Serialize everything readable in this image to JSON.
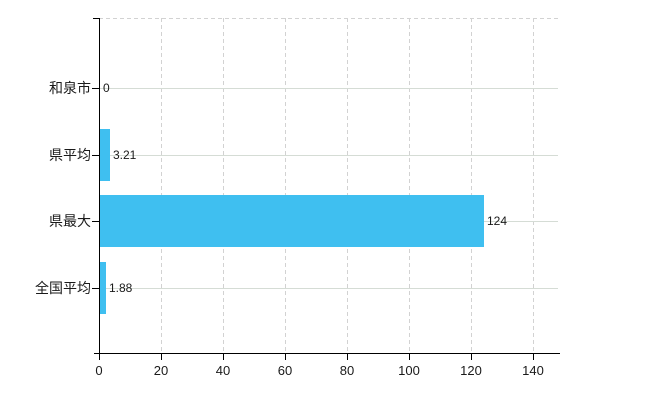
{
  "chart_data": {
    "type": "bar",
    "orientation": "horizontal",
    "title": "",
    "xlabel": "",
    "ylabel": "",
    "categories": [
      "和泉市",
      "県平均",
      "県最大",
      "全国平均"
    ],
    "values": [
      0,
      3.21,
      124,
      1.88
    ],
    "value_labels": [
      "0",
      "3.21",
      "124",
      "1.88"
    ],
    "x_ticks": [
      0,
      20,
      40,
      60,
      80,
      100,
      120,
      140
    ],
    "x_tick_labels": [
      "0",
      "20",
      "40",
      "60",
      "80",
      "100",
      "120",
      "140"
    ],
    "xlim": [
      0,
      148
    ],
    "legend": null,
    "grid": {
      "vertical_lines": "dashed",
      "horizontal_row_lines": "solid",
      "top_border": "dashed"
    },
    "colors": {
      "bar": "#3FBFF0",
      "axis": "#000000",
      "grid_vertical": "#d2d2d2",
      "grid_horizontal": "#d5dcd5",
      "text": "#1a1a1a",
      "background": "#ffffff"
    }
  }
}
